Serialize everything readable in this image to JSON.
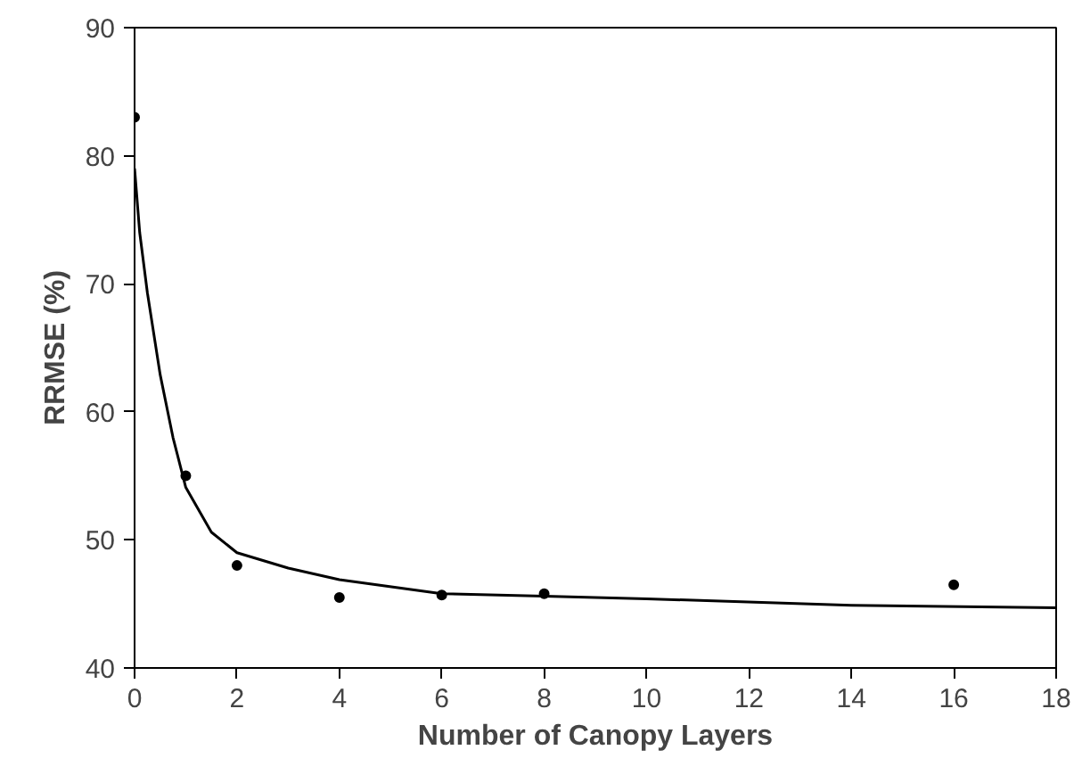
{
  "chart_data": {
    "type": "scatter",
    "xlabel": "Number of Canopy Layers",
    "ylabel": "RRMSE (%)",
    "xlim": [
      0,
      18
    ],
    "ylim": [
      40,
      90
    ],
    "xticks": [
      0,
      2,
      4,
      6,
      8,
      10,
      12,
      14,
      16,
      18
    ],
    "yticks": [
      40,
      50,
      60,
      70,
      80,
      90
    ],
    "grid": false,
    "series": [
      {
        "marker": "circle",
        "color": "#000000",
        "x": [
          0,
          1,
          2,
          4,
          6,
          8,
          16
        ],
        "values": [
          83.0,
          55.0,
          48.0,
          45.5,
          45.7,
          45.8,
          46.5
        ]
      },
      {
        "type": "line",
        "marker": "none",
        "color": "#000000",
        "line_style": "solid",
        "x": [
          0,
          0.1,
          0.25,
          0.5,
          0.75,
          1,
          1.5,
          2,
          3,
          4,
          6,
          8,
          10,
          14,
          18
        ],
        "values": [
          79,
          74,
          69.3,
          62.9,
          58,
          54.1,
          50.6,
          49.0,
          47.8,
          46.9,
          45.8,
          45.6,
          45.4,
          44.9,
          44.7
        ]
      }
    ]
  }
}
